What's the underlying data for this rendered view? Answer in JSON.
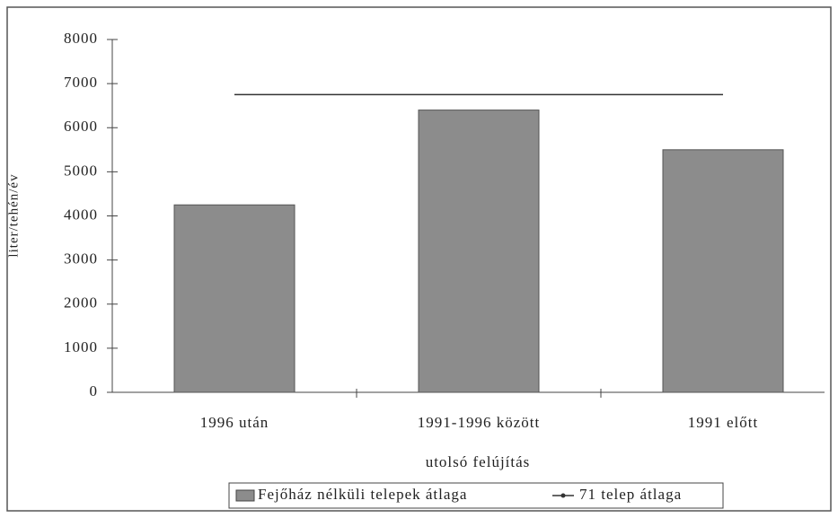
{
  "chart_data": {
    "type": "bar",
    "categories": [
      "1996 után",
      "1991-1996 között",
      "1991 előtt"
    ],
    "series": [
      {
        "name": "Fejőház nélküli telepek átlaga",
        "type": "bar",
        "color": "#8c8c8c",
        "values": [
          4250,
          6400,
          5500
        ]
      },
      {
        "name": "71 telep átlaga",
        "type": "line",
        "color": "#333333",
        "values": [
          6750,
          6750,
          6750
        ]
      }
    ],
    "y_label": "liter/tehén/év",
    "x_label": "utolsó felújítás",
    "ylim": [
      0,
      8000
    ],
    "yticks": [
      0,
      1000,
      2000,
      3000,
      4000,
      5000,
      6000,
      7000,
      8000
    ],
    "legend": "bottom"
  }
}
